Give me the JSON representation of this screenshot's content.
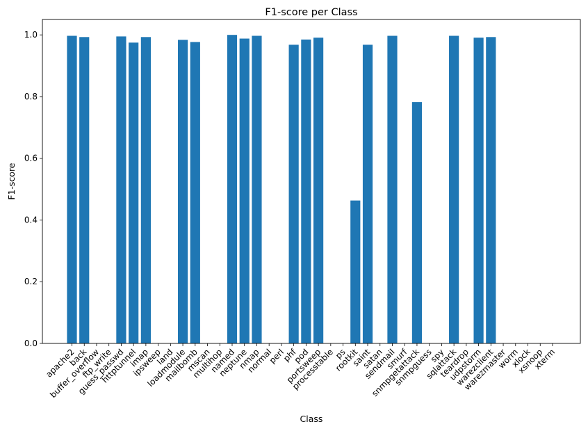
{
  "chart_data": {
    "type": "bar",
    "title": "F1-score per Class",
    "xlabel": "Class",
    "ylabel": "F1-score",
    "ylim": [
      0,
      1.05
    ],
    "yticks": [
      "0.0",
      "0.2",
      "0.4",
      "0.6",
      "0.8",
      "1.0"
    ],
    "grid": false,
    "bar_color": "#1f77b4",
    "categories": [
      "apache2",
      "back",
      "buffer_overflow",
      "ftp_write",
      "guess_passwd",
      "httptunnel",
      "imap",
      "ipsweep",
      "land",
      "loadmodule",
      "mailbomb",
      "mscan",
      "multihop",
      "named",
      "neptune",
      "nmap",
      "normal",
      "perl",
      "phf",
      "pod",
      "portsweep",
      "processtable",
      "ps",
      "rootkit",
      "saint",
      "satan",
      "sendmail",
      "smurf",
      "snmpgetattack",
      "snmpguess",
      "spy",
      "sqlattack",
      "teardrop",
      "udpstorm",
      "warezclient",
      "warezmaster",
      "worm",
      "xlock",
      "xsnoop",
      "xterm"
    ],
    "values": [
      0.997,
      0.993,
      0,
      0,
      0.995,
      0.975,
      0.993,
      0,
      0,
      0.984,
      0.977,
      0,
      0,
      1.0,
      0.988,
      0.997,
      0,
      0,
      0.968,
      0.985,
      0.991,
      0,
      0,
      0.463,
      0.968,
      0,
      0.997,
      0,
      0.782,
      0,
      0,
      0.997,
      0,
      0.991,
      0.993,
      0,
      0,
      0,
      0,
      0
    ]
  }
}
